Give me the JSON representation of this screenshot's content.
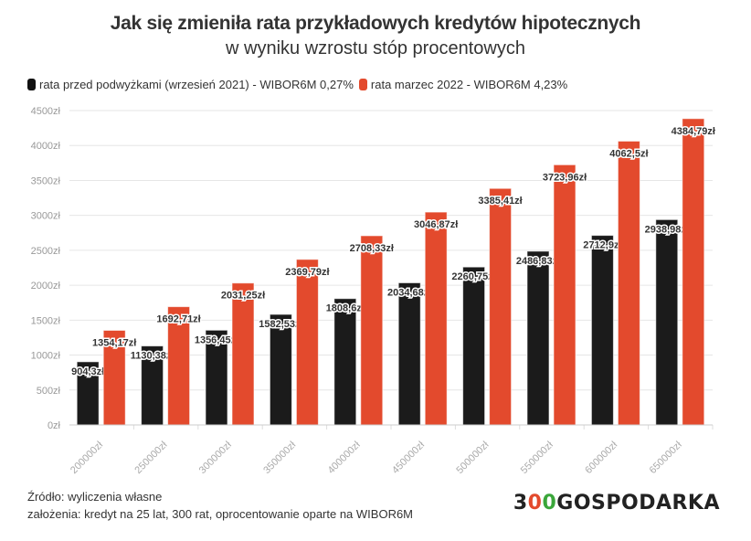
{
  "chart_data": {
    "type": "bar",
    "title": "Jak się zmieniła rata przykładowych kredytów hipotecznych",
    "subtitle": "w wyniku wzrostu stóp procentowych",
    "categories": [
      "200000zł",
      "250000zł",
      "300000zł",
      "350000zł",
      "400000zł",
      "450000zł",
      "500000zł",
      "550000zł",
      "600000zł",
      "650000zł"
    ],
    "series": [
      {
        "name": "rata przed podwyżkami (wrzesień 2021) - WIBOR6M 0,27%",
        "color": "#1b1b1b",
        "values": [
          904.3,
          1130.38,
          1356.45,
          1582.53,
          1808.6,
          2034.68,
          2260.75,
          2486.83,
          2712.9,
          2938.98
        ],
        "labels": [
          "904,3zł",
          "1130,38zł",
          "1356,45zł",
          "1582,53zł",
          "1808,6zł",
          "2034,68zł",
          "2260,75zł",
          "2486,83zł",
          "2712,9zł",
          "2938,98zł"
        ]
      },
      {
        "name": "rata marzec 2022 - WIBOR6M 4,23%",
        "color": "#e34a2d",
        "values": [
          1354.17,
          1692.71,
          2031.25,
          2369.79,
          2708.33,
          3046.87,
          3385.41,
          3723.96,
          4062.5,
          4384.79
        ],
        "labels": [
          "1354,17zł",
          "1692,71zł",
          "2031,25zł",
          "2369,79zł",
          "2708,33zł",
          "3046,87zł",
          "3385,41zł",
          "3723,96zł",
          "4062,5zł",
          "4384,79zł"
        ]
      }
    ],
    "yticks": [
      "0zł",
      "500zł",
      "1000zł",
      "1500zł",
      "2000zł",
      "2500zł",
      "3000zł",
      "3500zł",
      "4000zł",
      "4500zł"
    ],
    "ylim": [
      0,
      4500
    ],
    "grid": true,
    "legend": "top-left"
  },
  "footer": {
    "source": "Źródło: wyliczenia własne",
    "assumptions": "założenia: kredyt na 25 lat, 300 rat, oprocentowanie oparte na WIBOR6M"
  },
  "logo": {
    "text": "300GOSPODARKA",
    "part1": "3",
    "part2": "0",
    "part3": "0",
    "part4": "GOSPODARKA",
    "red": "#e34a2d",
    "green": "#3aa63a"
  }
}
